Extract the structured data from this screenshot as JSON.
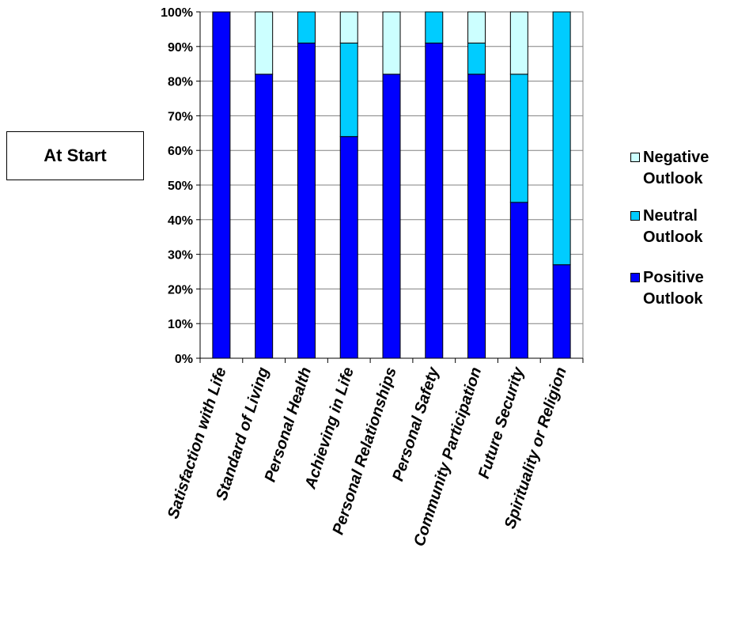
{
  "box_label": "At Start",
  "chart_data": {
    "type": "bar",
    "stacked": true,
    "percent": true,
    "categories": [
      "Satisfaction with Life",
      "Standard of Living",
      "Personal Health",
      "Achieving in Life",
      "Personal Relationships",
      "Personal Safety",
      "Community Participation",
      "Future Security",
      "Spirituality or Religion"
    ],
    "series": [
      {
        "name": "Positive Outlook",
        "color": "#0000FF",
        "values": [
          100,
          82,
          91,
          64,
          82,
          91,
          82,
          45,
          27
        ]
      },
      {
        "name": "Neutral Outlook",
        "color": "#00CCFF",
        "values": [
          0,
          0,
          9,
          27,
          0,
          9,
          9,
          37,
          73
        ]
      },
      {
        "name": "Negative Outlook",
        "color": "#CCFFFF",
        "values": [
          0,
          18,
          0,
          9,
          18,
          0,
          9,
          18,
          0
        ]
      }
    ],
    "yticks": [
      "0%",
      "10%",
      "20%",
      "30%",
      "40%",
      "50%",
      "60%",
      "70%",
      "80%",
      "90%",
      "100%"
    ],
    "ylim": [
      0,
      100
    ],
    "legend_position": "right",
    "legend": [
      {
        "name": "Negative Outlook",
        "color": "#CCFFFF"
      },
      {
        "name": "Neutral Outlook",
        "color": "#00CCFF"
      },
      {
        "name": "Positive Outlook",
        "color": "#0000FF"
      }
    ]
  }
}
